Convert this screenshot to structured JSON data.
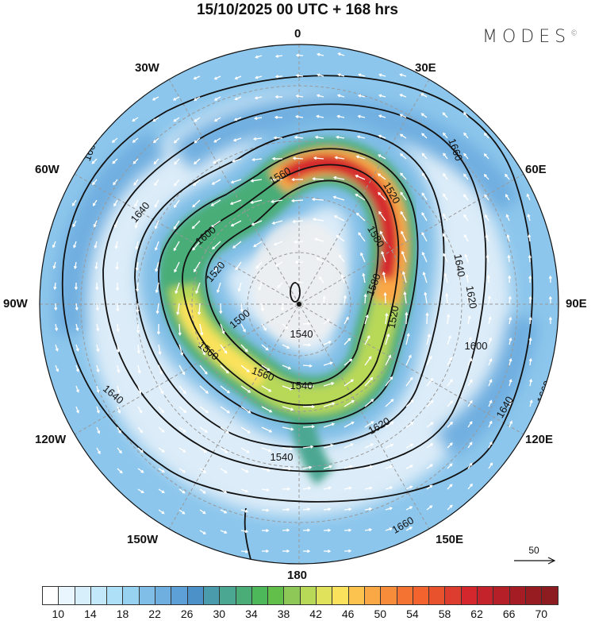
{
  "title": "15/10/2025  00 UTC  + 168 hrs",
  "logo": {
    "text": "MODES",
    "mark": "©"
  },
  "longitude_labels": {
    "n": "0",
    "ne30": "30E",
    "ne60": "60E",
    "e90": "90E",
    "e120": "120E",
    "e150": "150E",
    "s180": "180",
    "w150": "150W",
    "w120": "120W",
    "w90": "90W",
    "w60": "60W",
    "w30": "30W"
  },
  "contour_labels": [
    "1660",
    "1660",
    "1640",
    "1600",
    "1560",
    "1520",
    "1580",
    "1620",
    "1640",
    "1520",
    "1540",
    "1500",
    "1560",
    "1540",
    "1560",
    "1640",
    "1620",
    "1540",
    "1660",
    "1660",
    "1600",
    "1640",
    "1580",
    "1520"
  ],
  "reference_vector": {
    "label": "50"
  },
  "colorbar": {
    "ticks": [
      "10",
      "14",
      "18",
      "22",
      "26",
      "30",
      "34",
      "38",
      "42",
      "46",
      "50",
      "54",
      "58",
      "62",
      "66",
      "70"
    ],
    "colors": [
      "#ffffff",
      "#e9f6fd",
      "#d6effb",
      "#c3e8fa",
      "#aee0f8",
      "#97d2f1",
      "#80bee7",
      "#6fafe0",
      "#5d9fd7",
      "#4c92c9",
      "#4a9bab",
      "#4ca792",
      "#4aad78",
      "#4db85a",
      "#62c04a",
      "#8ec957",
      "#b8d858",
      "#e0e25c",
      "#fbe25c",
      "#fcc44f",
      "#faa846",
      "#f78d3b",
      "#f47332",
      "#f2632e",
      "#e8522c",
      "#dd3d2e",
      "#d4262d",
      "#c5232b",
      "#b52028",
      "#a51c25",
      "#961c22",
      "#8c1c20"
    ]
  }
}
